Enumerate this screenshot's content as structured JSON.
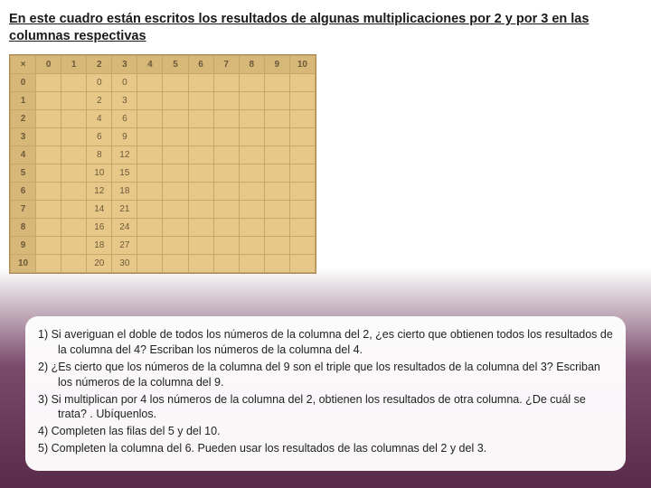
{
  "title": "En este cuadro están escritos los resultados de algunas multiplicaciones por 2 y por 3 en las columnas respectivas",
  "table": {
    "corner": "×",
    "col_headers": [
      "0",
      "1",
      "2",
      "3",
      "4",
      "5",
      "6",
      "7",
      "8",
      "9",
      "10"
    ],
    "row_headers": [
      "0",
      "1",
      "2",
      "3",
      "4",
      "5",
      "6",
      "7",
      "8",
      "9",
      "10"
    ],
    "cells": [
      [
        "",
        "",
        "0",
        "0",
        "",
        "",
        "",
        "",
        "",
        "",
        ""
      ],
      [
        "",
        "",
        "2",
        "3",
        "",
        "",
        "",
        "",
        "",
        "",
        ""
      ],
      [
        "",
        "",
        "4",
        "6",
        "",
        "",
        "",
        "",
        "",
        "",
        ""
      ],
      [
        "",
        "",
        "6",
        "9",
        "",
        "",
        "",
        "",
        "",
        "",
        ""
      ],
      [
        "",
        "",
        "8",
        "12",
        "",
        "",
        "",
        "",
        "",
        "",
        ""
      ],
      [
        "",
        "",
        "10",
        "15",
        "",
        "",
        "",
        "",
        "",
        "",
        ""
      ],
      [
        "",
        "",
        "12",
        "18",
        "",
        "",
        "",
        "",
        "",
        "",
        ""
      ],
      [
        "",
        "",
        "14",
        "21",
        "",
        "",
        "",
        "",
        "",
        "",
        ""
      ],
      [
        "",
        "",
        "16",
        "24",
        "",
        "",
        "",
        "",
        "",
        "",
        ""
      ],
      [
        "",
        "",
        "18",
        "27",
        "",
        "",
        "",
        "",
        "",
        "",
        ""
      ],
      [
        "",
        "",
        "20",
        "30",
        "",
        "",
        "",
        "",
        "",
        "",
        ""
      ]
    ],
    "colors": {
      "bg": "#e8c888",
      "header_bg": "#d8b878",
      "border": "#c8a868",
      "text": "#6a5a3a"
    }
  },
  "questions": {
    "q1": "1)  Si averiguan el doble de todos los números de la columna del 2, ¿es cierto que obtienen todos los resultados de la columna del 4? Escriban los números de la columna del 4.",
    "q2": "2) ¿Es cierto que los números de la columna del 9 son  el triple que los resultados de la columna del 3? Escriban los números de la columna del 9.",
    "q3": "3) Si multiplican por 4 los números de la columna del 2, obtienen los resultados de otra columna. ¿De cuál se trata? . Ubíquenlos.",
    "q4": "4) Completen las filas del 5 y del 10.",
    "q5": "5) Completen la columna del 6. Pueden usar los resultados de las columnas del 2 y del 3."
  }
}
